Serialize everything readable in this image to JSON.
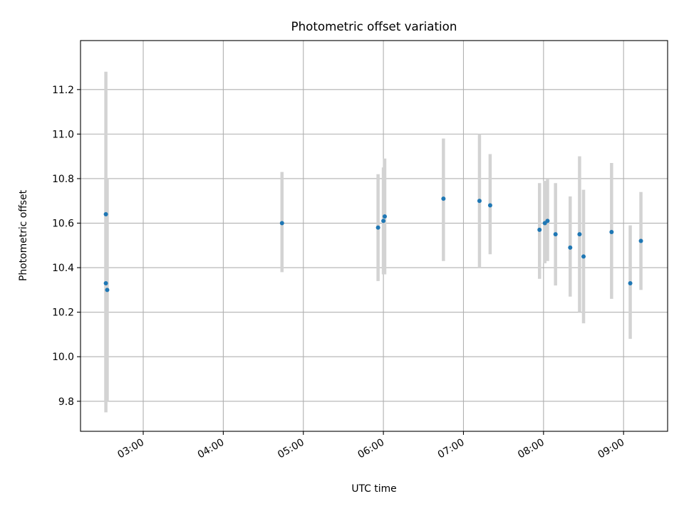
{
  "chart_data": {
    "type": "scatter",
    "title": "Photometric offset variation",
    "xlabel": "UTC time",
    "ylabel": "Photometric offset",
    "xlim": [
      "02:13",
      "09:33"
    ],
    "ylim": [
      9.665,
      11.42
    ],
    "grid": true,
    "x_ticks": [
      "03:00",
      "04:00",
      "05:00",
      "06:00",
      "07:00",
      "08:00",
      "09:00"
    ],
    "y_ticks": [
      "9.8",
      "10.0",
      "10.2",
      "10.4",
      "10.6",
      "10.8",
      "11.0",
      "11.2"
    ],
    "colors": {
      "points": "#1f77b4",
      "errorbars": "#d3d3d3",
      "grid": "#b0b0b0",
      "frame": "#000000"
    },
    "series": [
      {
        "points": [
          {
            "x": "02:32",
            "y": 10.64,
            "yerr_low": 9.75,
            "yerr_high": 11.28
          },
          {
            "x": "02:32",
            "y": 10.33,
            "yerr_low": 9.8,
            "yerr_high": 10.8
          },
          {
            "x": "02:33",
            "y": 10.3,
            "yerr_low": 9.8,
            "yerr_high": 10.8
          },
          {
            "x": "04:44",
            "y": 10.6,
            "yerr_low": 10.38,
            "yerr_high": 10.83
          },
          {
            "x": "05:56",
            "y": 10.58,
            "yerr_low": 10.34,
            "yerr_high": 10.82
          },
          {
            "x": "06:00",
            "y": 10.61,
            "yerr_low": 10.37,
            "yerr_high": 10.85
          },
          {
            "x": "06:01",
            "y": 10.63,
            "yerr_low": 10.37,
            "yerr_high": 10.89
          },
          {
            "x": "06:45",
            "y": 10.71,
            "yerr_low": 10.43,
            "yerr_high": 10.98
          },
          {
            "x": "07:12",
            "y": 10.7,
            "yerr_low": 10.4,
            "yerr_high": 11.0
          },
          {
            "x": "07:20",
            "y": 10.68,
            "yerr_low": 10.46,
            "yerr_high": 10.91
          },
          {
            "x": "07:57",
            "y": 10.57,
            "yerr_low": 10.35,
            "yerr_high": 10.78
          },
          {
            "x": "08:01",
            "y": 10.6,
            "yerr_low": 10.42,
            "yerr_high": 10.79
          },
          {
            "x": "08:03",
            "y": 10.61,
            "yerr_low": 10.43,
            "yerr_high": 10.8
          },
          {
            "x": "08:09",
            "y": 10.55,
            "yerr_low": 10.32,
            "yerr_high": 10.78
          },
          {
            "x": "08:20",
            "y": 10.49,
            "yerr_low": 10.27,
            "yerr_high": 10.72
          },
          {
            "x": "08:27",
            "y": 10.55,
            "yerr_low": 10.2,
            "yerr_high": 10.9
          },
          {
            "x": "08:30",
            "y": 10.45,
            "yerr_low": 10.15,
            "yerr_high": 10.75
          },
          {
            "x": "08:51",
            "y": 10.56,
            "yerr_low": 10.26,
            "yerr_high": 10.87
          },
          {
            "x": "09:05",
            "y": 10.33,
            "yerr_low": 10.08,
            "yerr_high": 10.59
          },
          {
            "x": "09:13",
            "y": 10.52,
            "yerr_low": 10.3,
            "yerr_high": 10.74
          }
        ]
      }
    ]
  }
}
